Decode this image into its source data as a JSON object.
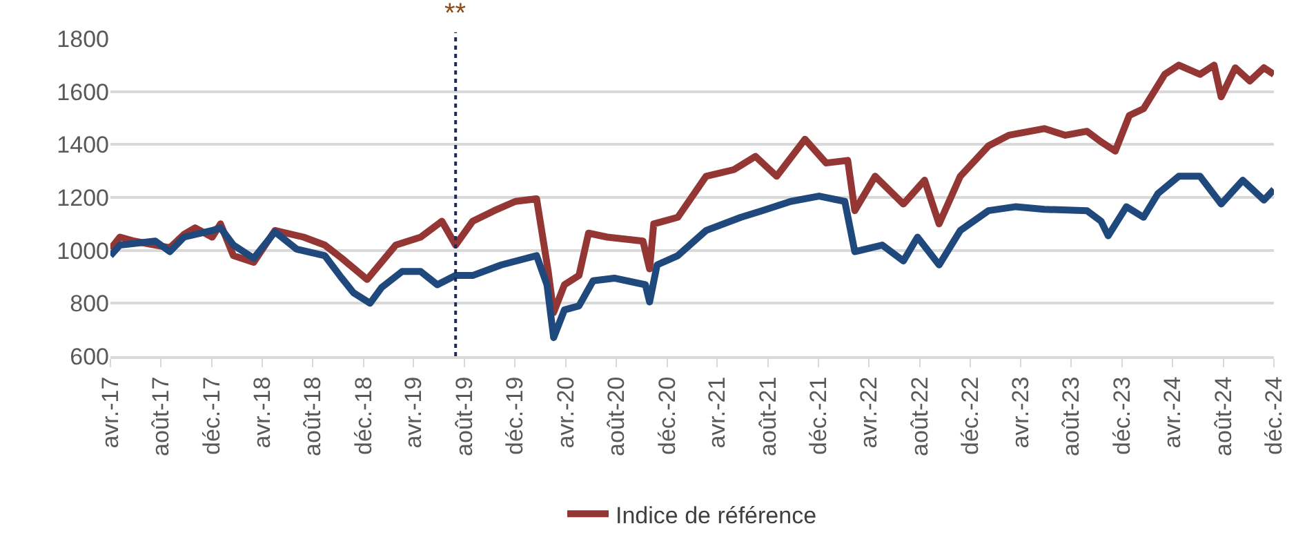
{
  "chart_data": {
    "type": "line",
    "series": [
      {
        "name": "Indice de référence",
        "color": "#943634",
        "x": [
          "2017-04-01",
          "2017-04-24",
          "2017-05-28",
          "2017-07-18",
          "2017-08-22",
          "2017-09-25",
          "2017-10-22",
          "2017-12-02",
          "2017-12-22",
          "2018-01-22",
          "2018-03-12",
          "2018-05-02",
          "2018-07-10",
          "2018-08-30",
          "2018-10-10",
          "2018-12-10",
          "2019-02-17",
          "2019-04-18",
          "2019-06-08",
          "2019-07-11",
          "2019-08-21",
          "2019-10-12",
          "2019-12-02",
          "2020-01-22",
          "2020-02-19",
          "2020-03-03",
          "2020-03-29",
          "2020-05-03",
          "2020-05-26",
          "2020-07-10",
          "2020-10-04",
          "2020-10-20",
          "2020-10-30",
          "2020-12-27",
          "2021-03-05",
          "2021-05-11",
          "2021-07-02",
          "2021-08-22",
          "2021-10-29",
          "2021-12-19",
          "2022-02-09",
          "2022-02-26",
          "2022-04-16",
          "2022-06-23",
          "2022-08-13",
          "2022-09-17",
          "2022-11-07",
          "2023-01-14",
          "2023-03-04",
          "2023-05-28",
          "2023-07-18",
          "2023-09-08",
          "2023-10-12",
          "2023-11-15",
          "2023-12-19",
          "2024-01-22",
          "2024-03-13",
          "2024-04-16",
          "2024-06-06",
          "2024-07-10",
          "2024-07-27",
          "2024-08-30",
          "2024-10-04",
          "2024-11-07",
          "2024-12-01"
        ],
        "values": [
          1005,
          1050,
          1035,
          1020,
          1010,
          1060,
          1085,
          1050,
          1100,
          980,
          955,
          1075,
          1050,
          1020,
          970,
          890,
          1020,
          1050,
          1110,
          1020,
          1110,
          1150,
          1185,
          1195,
          920,
          765,
          870,
          905,
          1065,
          1050,
          1035,
          930,
          1100,
          1125,
          1280,
          1305,
          1355,
          1280,
          1420,
          1330,
          1340,
          1150,
          1280,
          1175,
          1265,
          1100,
          1280,
          1395,
          1435,
          1460,
          1435,
          1450,
          1410,
          1375,
          1510,
          1535,
          1665,
          1700,
          1665,
          1700,
          1580,
          1690,
          1640,
          1690,
          1665
        ]
      },
      {
        "color": "#1f497d",
        "x": [
          "2017-04-01",
          "2017-04-24",
          "2017-07-18",
          "2017-08-22",
          "2017-09-25",
          "2017-12-02",
          "2017-12-22",
          "2018-01-22",
          "2018-03-12",
          "2018-05-02",
          "2018-06-23",
          "2018-08-30",
          "2018-10-10",
          "2018-11-07",
          "2018-12-17",
          "2019-01-14",
          "2019-03-04",
          "2019-04-18",
          "2019-05-28",
          "2019-07-11",
          "2019-08-21",
          "2019-10-29",
          "2020-01-22",
          "2020-02-16",
          "2020-03-03",
          "2020-03-29",
          "2020-05-03",
          "2020-06-06",
          "2020-07-27",
          "2020-10-10",
          "2020-10-20",
          "2020-11-07",
          "2020-12-27",
          "2021-03-05",
          "2021-05-28",
          "2021-07-18",
          "2021-09-25",
          "2021-12-02",
          "2022-02-02",
          "2022-02-26",
          "2022-05-03",
          "2022-06-23",
          "2022-07-27",
          "2022-09-17",
          "2022-11-07",
          "2023-01-14",
          "2023-03-21",
          "2023-05-28",
          "2023-09-08",
          "2023-10-12",
          "2023-10-29",
          "2023-12-12",
          "2024-01-22",
          "2024-02-26",
          "2024-04-16",
          "2024-06-06",
          "2024-07-27",
          "2024-09-17",
          "2024-11-07",
          "2024-12-01"
        ],
        "values": [
          980,
          1020,
          1035,
          995,
          1050,
          1075,
          1085,
          1020,
          970,
          1070,
          1005,
          980,
          895,
          840,
          800,
          860,
          920,
          920,
          870,
          905,
          905,
          945,
          980,
          870,
          670,
          775,
          790,
          885,
          895,
          870,
          805,
          945,
          980,
          1075,
          1125,
          1150,
          1185,
          1205,
          1185,
          995,
          1020,
          960,
          1050,
          945,
          1075,
          1150,
          1165,
          1155,
          1150,
          1110,
          1055,
          1165,
          1125,
          1215,
          1280,
          1280,
          1175,
          1265,
          1190,
          1230
        ]
      }
    ],
    "xlim": [
      "2017-04-01",
      "2024-12-01"
    ],
    "xticks": [
      {
        "value": "2017-04-01",
        "label": "avr.-17"
      },
      {
        "value": "2017-08-01",
        "label": "août-17"
      },
      {
        "value": "2017-12-01",
        "label": "déc.-17"
      },
      {
        "value": "2018-04-01",
        "label": "avr.-18"
      },
      {
        "value": "2018-08-01",
        "label": "août-18"
      },
      {
        "value": "2018-12-01",
        "label": "déc.-18"
      },
      {
        "value": "2019-04-01",
        "label": "avr.-19"
      },
      {
        "value": "2019-08-01",
        "label": "août-19"
      },
      {
        "value": "2019-12-01",
        "label": "déc.-19"
      },
      {
        "value": "2020-04-01",
        "label": "avr.-20"
      },
      {
        "value": "2020-08-01",
        "label": "août-20"
      },
      {
        "value": "2020-12-01",
        "label": "déc.-20"
      },
      {
        "value": "2021-04-01",
        "label": "avr.-21"
      },
      {
        "value": "2021-08-01",
        "label": "août-21"
      },
      {
        "value": "2021-12-01",
        "label": "déc.-21"
      },
      {
        "value": "2022-04-01",
        "label": "avr.-22"
      },
      {
        "value": "2022-08-01",
        "label": "août-22"
      },
      {
        "value": "2022-12-01",
        "label": "déc.-22"
      },
      {
        "value": "2023-04-01",
        "label": "avr.-23"
      },
      {
        "value": "2023-08-01",
        "label": "août-23"
      },
      {
        "value": "2023-12-01",
        "label": "déc.-23"
      },
      {
        "value": "2024-04-01",
        "label": "avr.-24"
      },
      {
        "value": "2024-08-01",
        "label": "août-24"
      },
      {
        "value": "2024-12-01",
        "label": "déc.-24"
      }
    ],
    "ylim": [
      600,
      1800
    ],
    "yticks": [
      600,
      800,
      1000,
      1200,
      1400,
      1600,
      1800
    ],
    "grid": "y",
    "legend": "bottom",
    "ref_lines": [
      {
        "axis": "x",
        "value": "2019-07-11",
        "label": "**",
        "color": "#1f2a5a",
        "line_style": "dotted"
      }
    ]
  }
}
